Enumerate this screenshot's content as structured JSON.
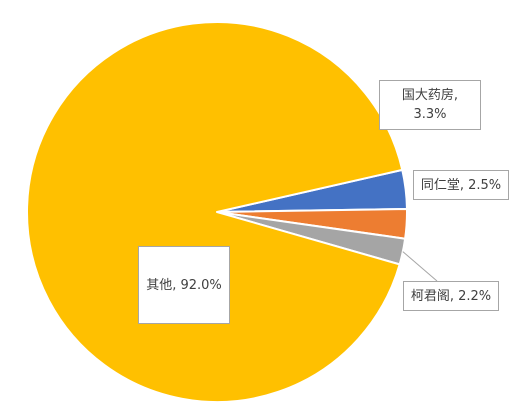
{
  "chart_data": {
    "type": "pie",
    "title": "",
    "slices": [
      {
        "name": "国大药房",
        "value": 3.3,
        "color": "#4472C4",
        "label_line1": "国大药房,",
        "label_line2": "3.3%"
      },
      {
        "name": "同仁堂",
        "value": 2.5,
        "color": "#ED7D31",
        "label_line1": "同仁堂, 2.5%",
        "label_line2": ""
      },
      {
        "name": "柯君阁",
        "value": 2.2,
        "color": "#A5A5A5",
        "label_line1": "柯君阁, 2.2%",
        "label_line2": ""
      },
      {
        "name": "其他",
        "value": 92.0,
        "color": "#FFC000",
        "label_line1": "其他, 92.0%",
        "label_line2": ""
      }
    ],
    "legend": "none"
  }
}
